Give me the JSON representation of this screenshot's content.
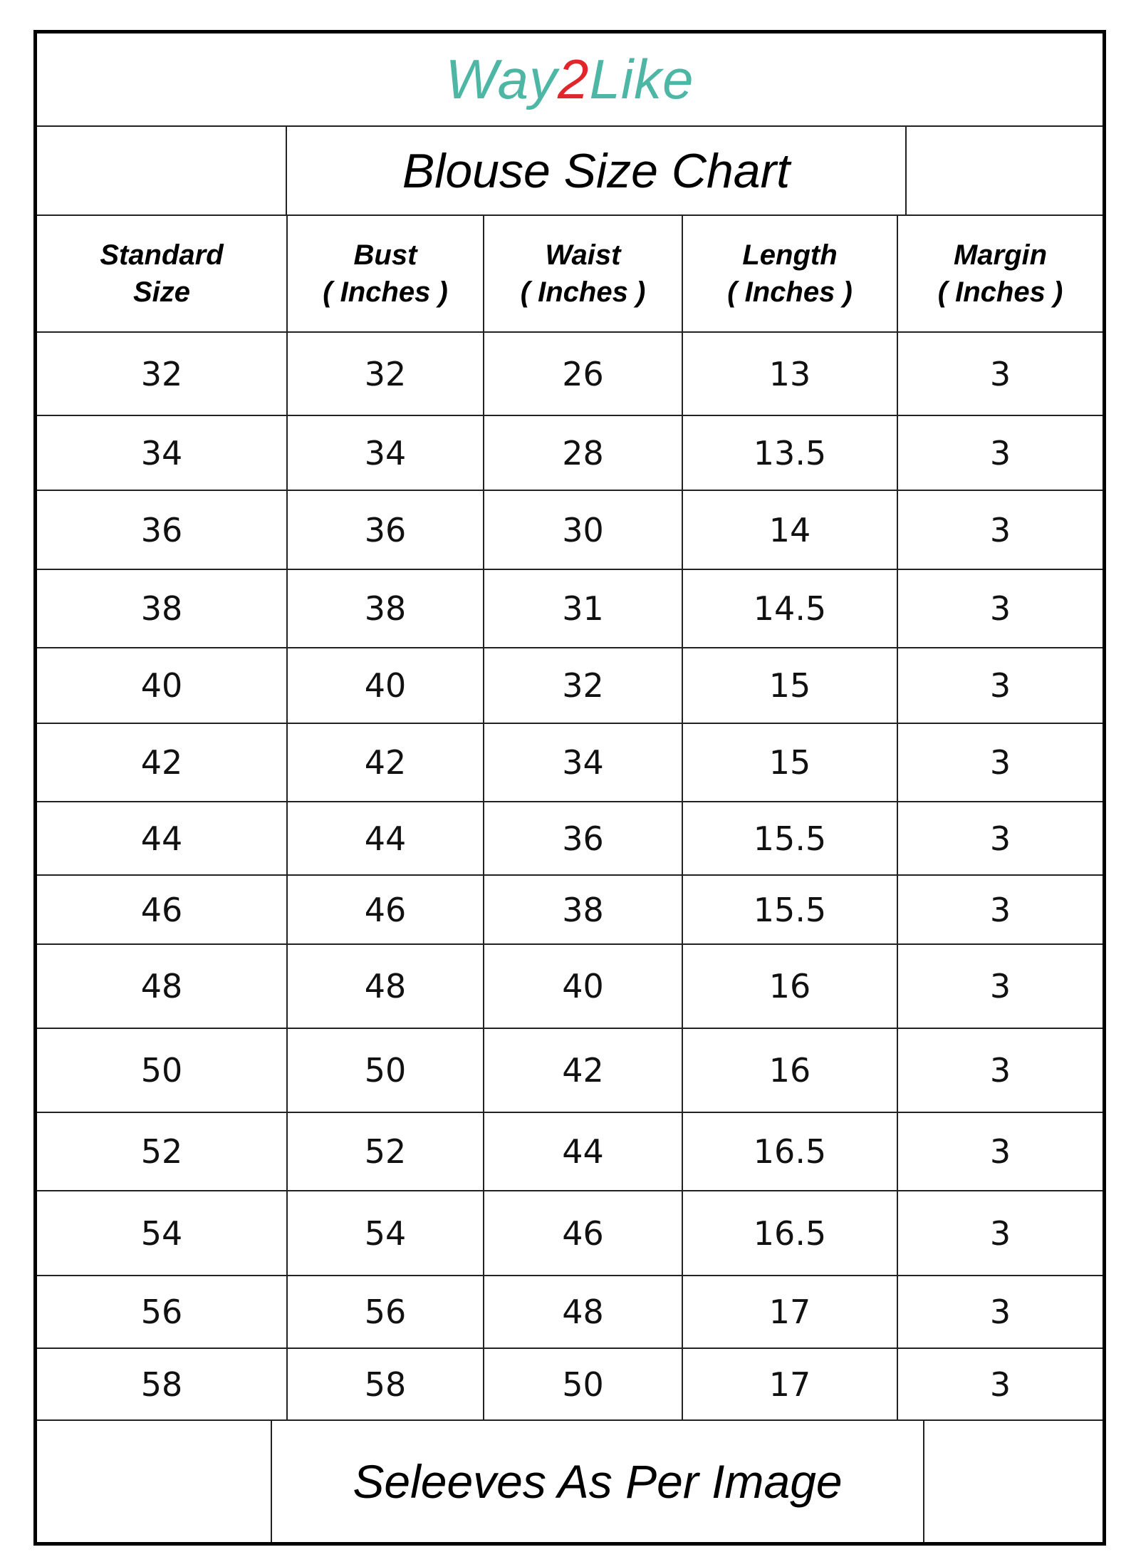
{
  "brand": {
    "prefix": "Way",
    "digit": "2",
    "suffix": "Like",
    "color": "#4db6a4",
    "digit_color": "#e0262b"
  },
  "title": "Blouse Size Chart",
  "headers": [
    {
      "line1": "Standard",
      "line2": "Size"
    },
    {
      "line1": "Bust",
      "line2": "( Inches )"
    },
    {
      "line1": "Waist",
      "line2": "( Inches )"
    },
    {
      "line1": "Length",
      "line2": "( Inches )"
    },
    {
      "line1": "Margin",
      "line2": "( Inches )"
    }
  ],
  "rows": [
    [
      "32",
      "32",
      "26",
      "13",
      "3"
    ],
    [
      "34",
      "34",
      "28",
      "13.5",
      "3"
    ],
    [
      "36",
      "36",
      "30",
      "14",
      "3"
    ],
    [
      "38",
      "38",
      "31",
      "14.5",
      "3"
    ],
    [
      "40",
      "40",
      "32",
      "15",
      "3"
    ],
    [
      "42",
      "42",
      "34",
      "15",
      "3"
    ],
    [
      "44",
      "44",
      "36",
      "15.5",
      "3"
    ],
    [
      "46",
      "46",
      "38",
      "15.5",
      "3"
    ],
    [
      "48",
      "48",
      "40",
      "16",
      "3"
    ],
    [
      "50",
      "50",
      "42",
      "16",
      "3"
    ],
    [
      "52",
      "52",
      "44",
      "16.5",
      "3"
    ],
    [
      "54",
      "54",
      "46",
      "16.5",
      "3"
    ],
    [
      "56",
      "56",
      "48",
      "17",
      "3"
    ],
    [
      "58",
      "58",
      "50",
      "17",
      "3"
    ]
  ],
  "footer": "Seleeves As Per Image"
}
